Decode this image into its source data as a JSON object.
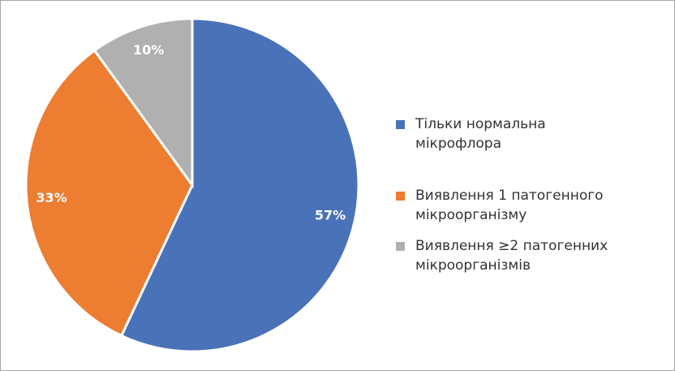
{
  "chart_data": {
    "type": "pie",
    "categories": [
      "Тільки нормальна мікрофлора",
      "Виявлення 1 патогенного мікроорганізму",
      "Виявлення ≥2 патогенних мікроорганізмів"
    ],
    "values": [
      57,
      33,
      10
    ],
    "value_labels": [
      "57%",
      "33%",
      "10%"
    ],
    "colors": [
      "#4a72b8",
      "#ed7d31",
      "#b0b0b0"
    ],
    "legend": "right"
  }
}
